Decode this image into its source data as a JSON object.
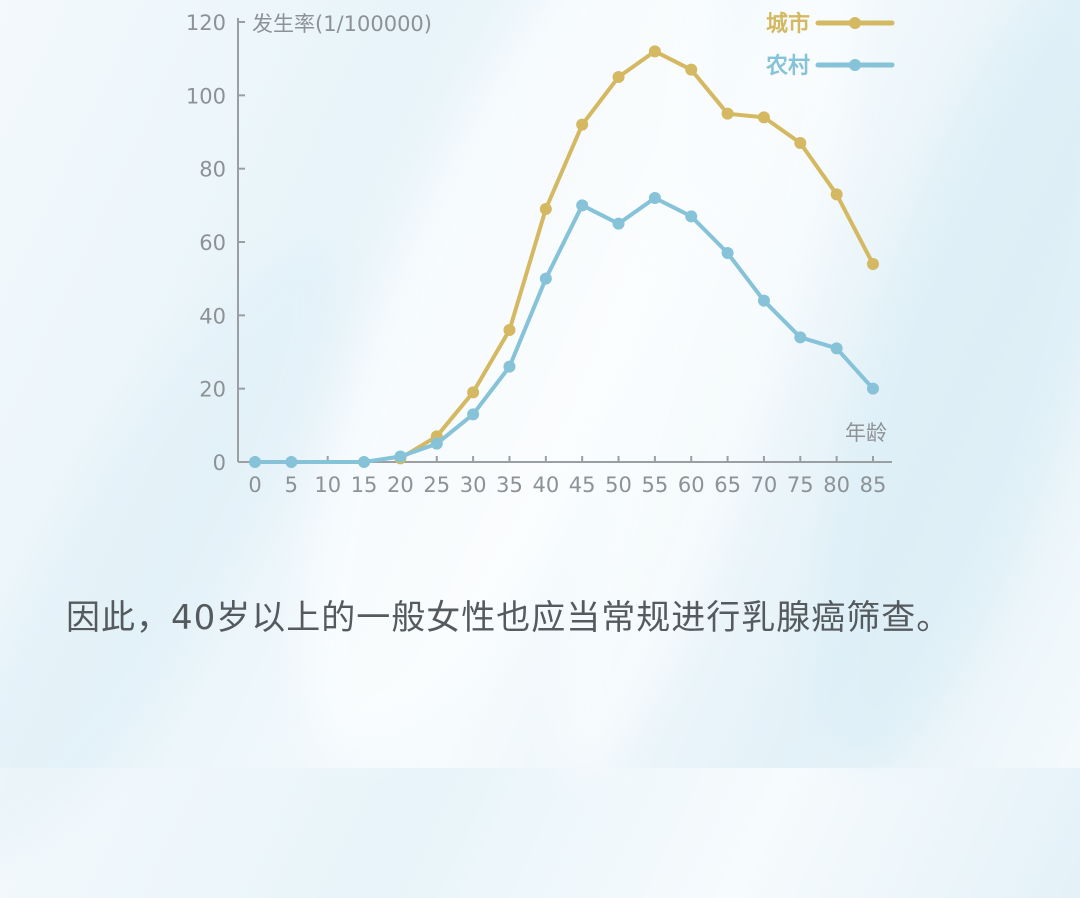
{
  "chart_data": {
    "type": "line",
    "ylabel": "发生率(1/100000)",
    "xlabel": "年龄",
    "x": [
      0,
      5,
      10,
      15,
      20,
      25,
      30,
      35,
      40,
      45,
      50,
      55,
      60,
      65,
      70,
      75,
      80,
      85
    ],
    "x_tick_labels": [
      "0",
      "5",
      "10",
      "15",
      "20",
      "25",
      "30",
      "35",
      "40",
      "45",
      "50",
      "55",
      "60",
      "65",
      "70",
      "75",
      "80",
      "85"
    ],
    "y_ticks": [
      0,
      20,
      40,
      60,
      80,
      100,
      120
    ],
    "xlim": [
      0,
      85
    ],
    "ylim": [
      0,
      120
    ],
    "grid": false,
    "legend_position": "top-right",
    "series": [
      {
        "name": "城市",
        "color": "#d4b962",
        "points": [
          [
            20,
            1
          ],
          [
            25,
            7
          ],
          [
            30,
            19
          ],
          [
            35,
            36
          ],
          [
            40,
            69
          ],
          [
            45,
            92
          ],
          [
            50,
            105
          ],
          [
            55,
            112
          ],
          [
            60,
            107
          ],
          [
            65,
            95
          ],
          [
            70,
            94
          ],
          [
            75,
            87
          ],
          [
            80,
            73
          ],
          [
            85,
            54
          ]
        ]
      },
      {
        "name": "农村",
        "color": "#86c2d8",
        "points": [
          [
            0,
            0
          ],
          [
            5,
            0
          ],
          [
            15,
            0
          ],
          [
            20,
            1.5
          ],
          [
            25,
            5
          ],
          [
            30,
            13
          ],
          [
            35,
            26
          ],
          [
            40,
            50
          ],
          [
            45,
            70
          ],
          [
            50,
            65
          ],
          [
            55,
            72
          ],
          [
            60,
            67
          ],
          [
            65,
            57
          ],
          [
            70,
            44
          ],
          [
            75,
            34
          ],
          [
            80,
            31
          ],
          [
            85,
            20
          ]
        ]
      }
    ]
  },
  "caption": "因此，40岁以上的一般女性也应当常规进行乳腺癌筛查。"
}
